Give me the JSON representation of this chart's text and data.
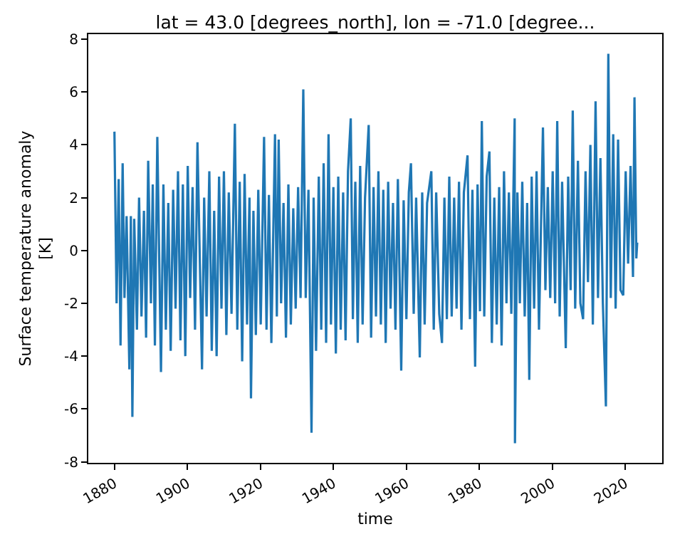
{
  "chart_data": {
    "type": "line",
    "title": "lat = 43.0 [degrees_north], lon = -71.0 [degree...",
    "xlabel": "time",
    "ylabel": "Surface temperature anomaly\n[K]",
    "xlim": [
      "1872-11",
      "2030-02"
    ],
    "xticks": [
      "1880",
      "1900",
      "1920",
      "1940",
      "1960",
      "1980",
      "2000",
      "2020"
    ],
    "ylim": [
      -8.04,
      8.19
    ],
    "yticks": [
      -8,
      -6,
      -4,
      -2,
      0,
      2,
      4,
      6,
      8
    ],
    "grid": false,
    "marker": "none",
    "line_style": "solid",
    "series": [
      {
        "color": "#1f77b4",
        "x": [
          "1880-01",
          "1880-08",
          "1881-03",
          "1881-09",
          "1882-04",
          "1882-10",
          "1883-05",
          "1884-02",
          "1884-07",
          "1884-12",
          "1885-06",
          "1886-03",
          "1886-10",
          "1887-06",
          "1888-02",
          "1888-09",
          "1889-04",
          "1890-01",
          "1890-07",
          "1891-02",
          "1891-10",
          "1892-10",
          "1893-06",
          "1894-02",
          "1894-10",
          "1895-06",
          "1896-02",
          "1896-10",
          "1897-06",
          "1898-02",
          "1898-10",
          "1899-06",
          "1900-02",
          "1900-10",
          "1901-06",
          "1902-02",
          "1902-10",
          "1904-01",
          "1904-08",
          "1905-04",
          "1906-01",
          "1906-09",
          "1907-05",
          "1908-01",
          "1908-09",
          "1909-05",
          "1910-01",
          "1910-09",
          "1911-05",
          "1912-02",
          "1913-01",
          "1913-09",
          "1914-05",
          "1915-01",
          "1915-09",
          "1916-05",
          "1917-01",
          "1917-06",
          "1918-02",
          "1918-10",
          "1919-06",
          "1920-02",
          "1921-01",
          "1921-09",
          "1922-05",
          "1923-01",
          "1923-09",
          "1924-01",
          "1924-07",
          "1925-01",
          "1925-09",
          "1926-05",
          "1927-01",
          "1927-09",
          "1928-05",
          "1929-01",
          "1929-09",
          "1930-05",
          "1931-01",
          "1931-10",
          "1932-06",
          "1933-03",
          "1934-01",
          "1934-08",
          "1935-04",
          "1936-01",
          "1936-09",
          "1937-05",
          "1938-01",
          "1938-09",
          "1939-05",
          "1940-01",
          "1940-09",
          "1941-05",
          "1942-01",
          "1942-09",
          "1943-05",
          "1944-01",
          "1944-10",
          "1945-05",
          "1946-01",
          "1946-09",
          "1947-05",
          "1948-01",
          "1948-09",
          "1949-09",
          "1950-05",
          "1951-01",
          "1951-09",
          "1952-05",
          "1953-01",
          "1953-09",
          "1954-05",
          "1955-01",
          "1955-09",
          "1956-05",
          "1957-01",
          "1957-09",
          "1958-08",
          "1959-04",
          "1960-01",
          "1960-09",
          "1961-04",
          "1962-01",
          "1962-09",
          "1963-09",
          "1964-05",
          "1965-01",
          "1965-09",
          "1966-11",
          "1967-07",
          "1968-03",
          "1969-01",
          "1969-10",
          "1970-06",
          "1971-02",
          "1971-10",
          "1972-06",
          "1973-02",
          "1973-10",
          "1974-06",
          "1975-02",
          "1975-10",
          "1976-10",
          "1977-06",
          "1978-02",
          "1978-11",
          "1979-07",
          "1980-03",
          "1980-09",
          "1981-05",
          "1982-01",
          "1982-10",
          "1983-06",
          "1984-02",
          "1984-10",
          "1985-06",
          "1986-02",
          "1986-10",
          "1987-06",
          "1988-02",
          "1988-10",
          "1989-09",
          "1989-10",
          "1990-06",
          "1991-02",
          "1991-10",
          "1992-06",
          "1993-02",
          "1993-09",
          "1994-05",
          "1995-01",
          "1995-09",
          "1996-05",
          "1997-06",
          "1998-02",
          "1998-10",
          "1999-06",
          "2000-02",
          "2000-10",
          "2001-05",
          "2002-01",
          "2002-09",
          "2003-09",
          "2004-05",
          "2005-01",
          "2005-08",
          "2006-04",
          "2007-01",
          "2007-09",
          "2008-06",
          "2009-02",
          "2009-10",
          "2010-06",
          "2011-02",
          "2011-11",
          "2012-07",
          "2013-03",
          "2013-11",
          "2014-09",
          "2015-05",
          "2016-01",
          "2016-09",
          "2017-05",
          "2018-01",
          "2018-09",
          "2019-06",
          "2020-02",
          "2020-10",
          "2021-06",
          "2022-02",
          "2022-07",
          "2023-01",
          "2023-04"
        ],
        "values": [
          4.5,
          -2.0,
          2.7,
          -3.6,
          3.3,
          -1.8,
          1.3,
          -4.5,
          1.3,
          -6.3,
          1.2,
          -3.0,
          2.0,
          -2.5,
          1.5,
          -3.3,
          3.4,
          -2.0,
          2.5,
          -3.6,
          4.3,
          -4.6,
          2.5,
          -3.0,
          1.8,
          -3.8,
          2.3,
          -2.2,
          3.0,
          -3.4,
          2.5,
          -4.0,
          3.2,
          -1.8,
          2.4,
          -3.0,
          4.1,
          -4.5,
          2.0,
          -2.5,
          3.0,
          -3.8,
          1.5,
          -4.0,
          2.8,
          -2.2,
          3.0,
          -3.2,
          2.2,
          -2.4,
          4.8,
          -3.0,
          2.6,
          -4.2,
          2.9,
          -2.8,
          2.0,
          -5.6,
          1.5,
          -3.2,
          2.3,
          -2.8,
          4.3,
          -3.0,
          2.1,
          -3.5,
          1.8,
          4.4,
          -2.5,
          4.2,
          -2.0,
          1.8,
          -3.3,
          2.5,
          -2.8,
          1.6,
          -2.2,
          2.4,
          -1.8,
          6.1,
          -1.8,
          2.3,
          -6.9,
          2.0,
          -3.8,
          2.8,
          -3.0,
          3.3,
          -3.5,
          4.4,
          -2.8,
          2.4,
          -3.9,
          2.8,
          -3.0,
          2.2,
          -3.4,
          3.0,
          5.0,
          -2.6,
          2.6,
          -3.5,
          3.2,
          -2.8,
          2.0,
          4.75,
          -3.3,
          2.4,
          -2.5,
          3.0,
          -2.8,
          2.3,
          -3.5,
          2.6,
          -2.2,
          1.8,
          -3.0,
          2.7,
          -4.55,
          1.9,
          -2.6,
          2.2,
          3.3,
          -2.4,
          2.0,
          -4.05,
          2.2,
          -2.8,
          1.8,
          3.0,
          -3.0,
          2.2,
          -2.4,
          -3.5,
          2.0,
          -2.6,
          2.8,
          -2.5,
          2.0,
          -2.2,
          2.6,
          -3.0,
          2.2,
          3.6,
          -2.6,
          2.3,
          -4.4,
          2.5,
          -2.3,
          4.9,
          -2.5,
          2.8,
          3.75,
          -3.5,
          2.0,
          -2.8,
          2.4,
          -3.6,
          3.0,
          -2.0,
          2.2,
          -2.4,
          5.0,
          -7.3,
          2.2,
          -2.0,
          2.6,
          -2.5,
          1.8,
          -4.9,
          2.8,
          -2.2,
          3.0,
          -3.0,
          4.66,
          -1.5,
          2.4,
          -1.8,
          3.0,
          -2.0,
          4.9,
          -2.5,
          2.6,
          -3.7,
          2.8,
          -1.5,
          5.3,
          -2.2,
          3.4,
          -2.0,
          -2.6,
          3.0,
          -1.2,
          4.0,
          -2.8,
          5.65,
          -1.8,
          3.5,
          -2.0,
          -5.9,
          7.45,
          -1.8,
          4.4,
          -2.2,
          4.2,
          -1.5,
          -1.7,
          3.0,
          -0.5,
          3.2,
          -1.0,
          5.8,
          -0.3,
          0.3
        ]
      }
    ]
  }
}
